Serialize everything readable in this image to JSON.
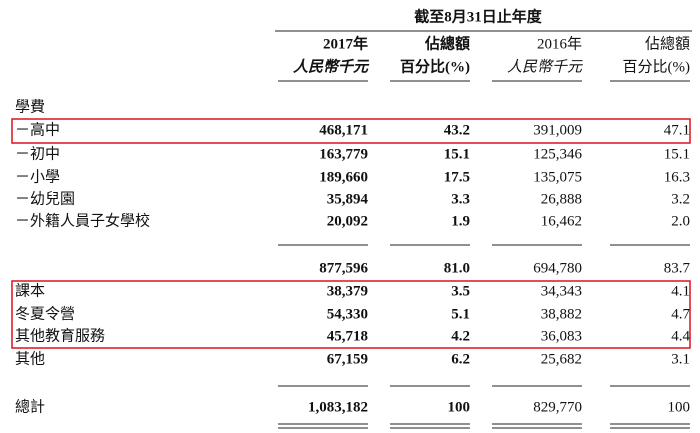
{
  "header": {
    "period": "截至8月31日止年度",
    "columns": [
      {
        "year": "2017年",
        "unit": "人民幣千元"
      },
      {
        "year": "佔總額",
        "unit": "百分比(%)"
      },
      {
        "year": "2016年",
        "unit": "人民幣千元"
      },
      {
        "year": "佔總額",
        "unit": "百分比(%)"
      }
    ]
  },
  "table": {
    "rows": [
      {
        "label": "學費"
      },
      {
        "label": "－高中",
        "cells": [
          "468,171",
          "43.2",
          "391,009",
          "47.1"
        ]
      },
      {
        "label": "－初中",
        "cells": [
          "163,779",
          "15.1",
          "125,346",
          "15.1"
        ]
      },
      {
        "label": "－小學",
        "cells": [
          "189,660",
          "17.5",
          "135,075",
          "16.3"
        ]
      },
      {
        "label": "－幼兒園",
        "cells": [
          "35,894",
          "3.3",
          "26,888",
          "3.2"
        ]
      },
      {
        "label": "－外籍人員子女學校",
        "cells": [
          "20,092",
          "1.9",
          "16,462",
          "2.0"
        ]
      },
      {
        "cells": [
          "877,596",
          "81.0",
          "694,780",
          "83.7"
        ]
      },
      {
        "label": "課本",
        "cells": [
          "38,379",
          "3.5",
          "34,343",
          "4.1"
        ]
      },
      {
        "label": "冬夏令營",
        "cells": [
          "54,330",
          "5.1",
          "38,882",
          "4.7"
        ]
      },
      {
        "label": "其他教育服務",
        "cells": [
          "45,718",
          "4.2",
          "36,083",
          "4.4"
        ]
      },
      {
        "label": "其他",
        "cells": [
          "67,159",
          "6.2",
          "25,682",
          "3.1"
        ]
      },
      {
        "label": "總計",
        "cells": [
          "1,083,182",
          "100",
          "829,770",
          "100"
        ]
      }
    ]
  }
}
